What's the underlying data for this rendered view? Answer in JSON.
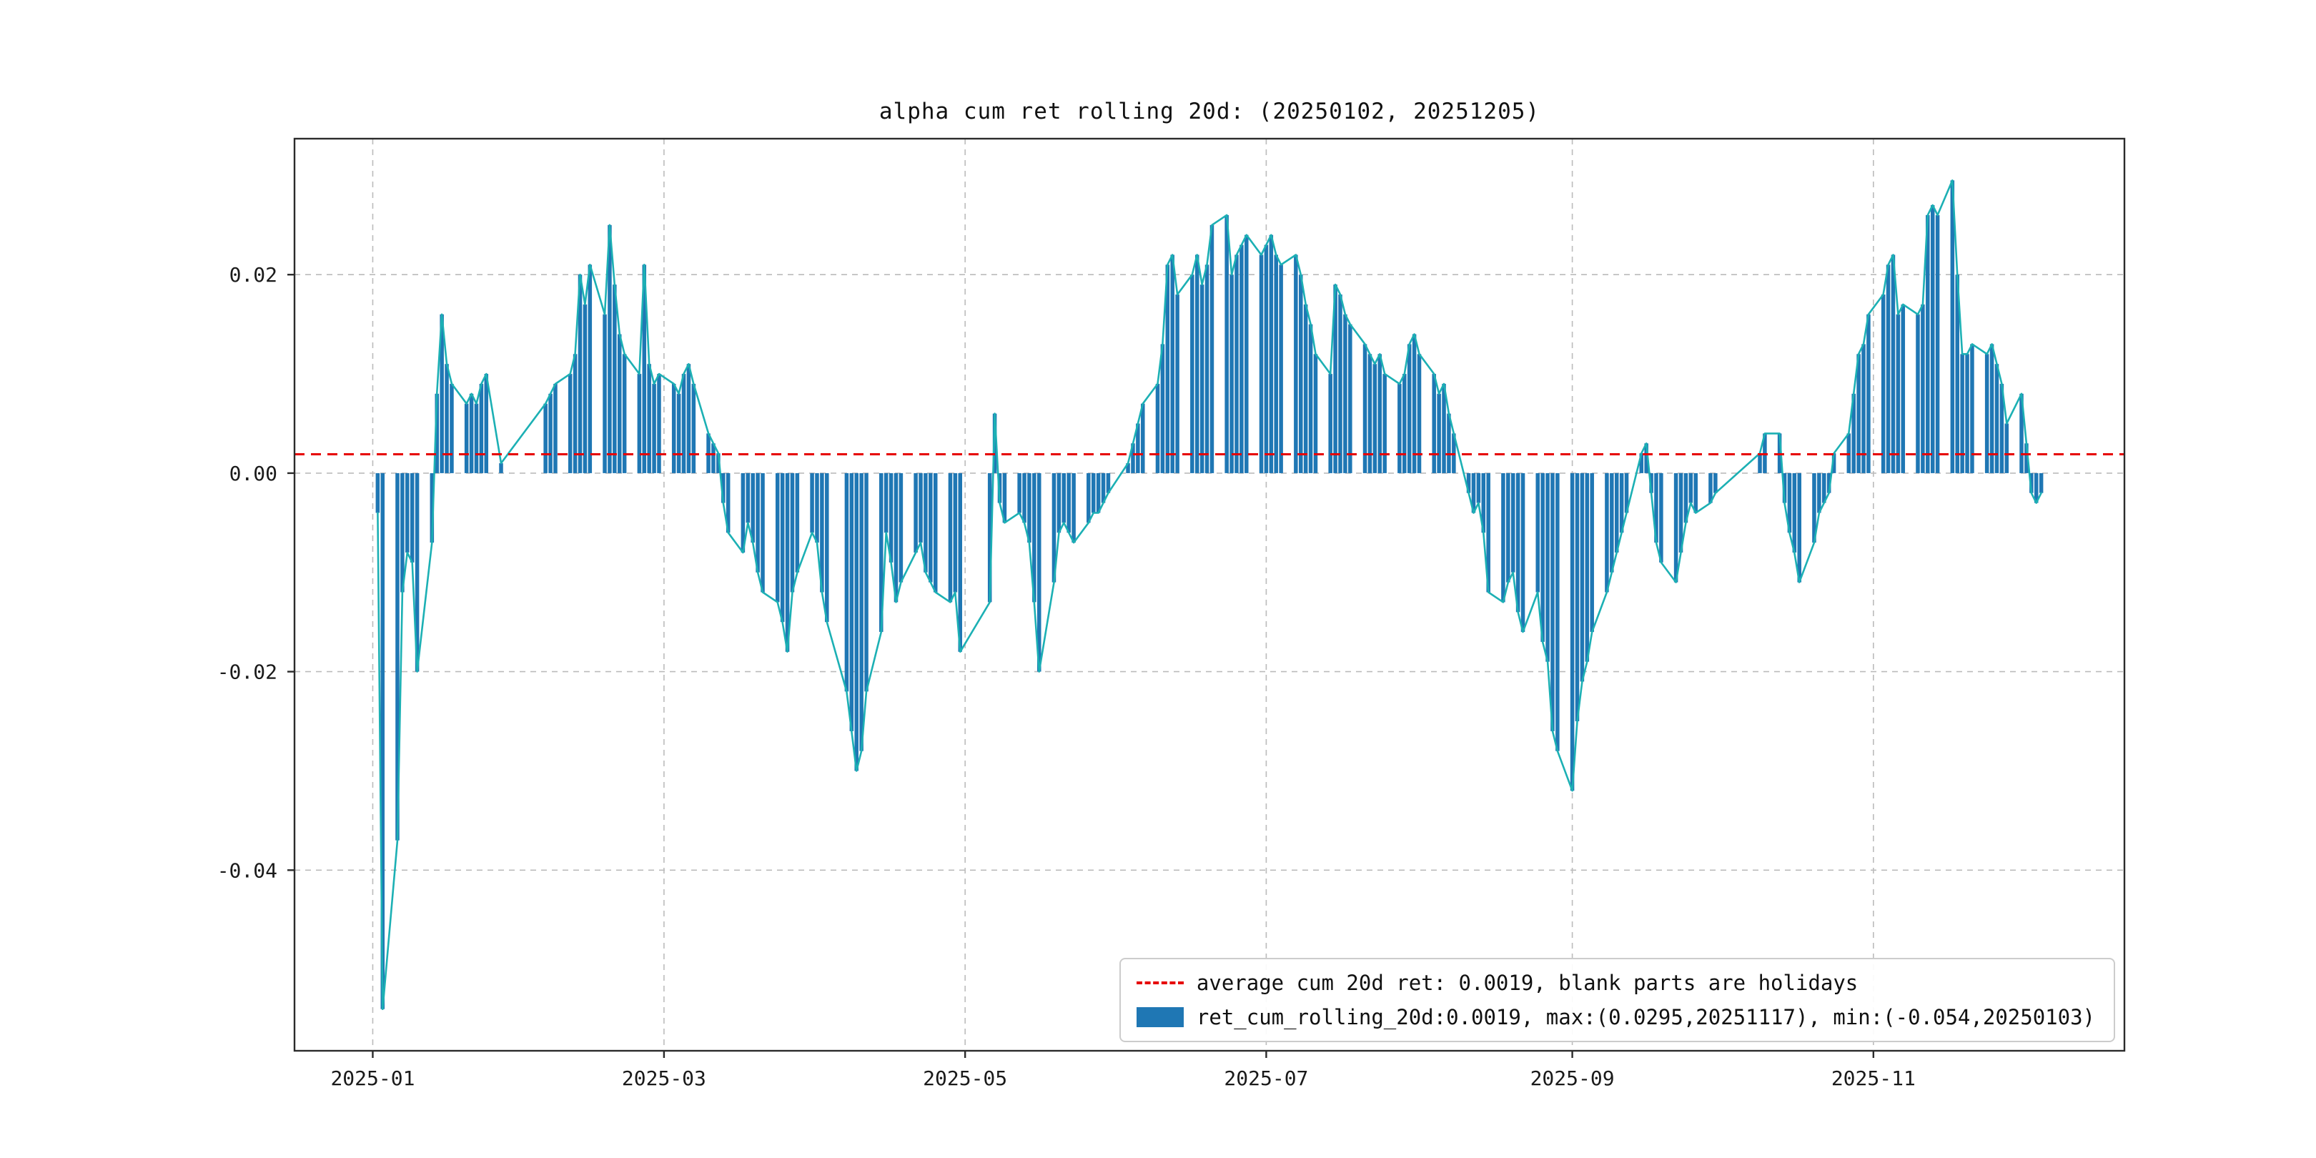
{
  "title": "alpha cum ret rolling 20d: (20250102, 20251205)",
  "legend": {
    "average_label": "average cum 20d ret: 0.0019, blank parts are holidays",
    "series_label": "ret_cum_rolling_20d:0.0019, max:(0.0295,20251117), min:(-0.054,20250103)"
  },
  "colors": {
    "bar": "#1f77b4",
    "line": "#1cb0b4",
    "average": "#e60000",
    "grid": "#bbbbbb",
    "frame": "#2b2b2b"
  },
  "chart_data": {
    "type": "bar",
    "title": "alpha cum ret rolling 20d: (20250102, 20251205)",
    "series_name": "ret_cum_rolling_20d",
    "average": 0.0019,
    "max": {
      "value": 0.0295,
      "date": "2025-11-17"
    },
    "min": {
      "value": -0.054,
      "date": "2025-01-03"
    },
    "ylim": [
      -0.0582,
      0.0337
    ],
    "x_margin_frac": 0.05,
    "grid": true,
    "legend_position": "lower right",
    "note": "blank parts are holidays",
    "yticks": [
      {
        "v": 0.02,
        "label": "0.02"
      },
      {
        "v": 0.0,
        "label": "0.00"
      },
      {
        "v": -0.02,
        "label": "-0.02"
      },
      {
        "v": -0.04,
        "label": "-0.04"
      }
    ],
    "xticks": [
      {
        "date": "2025-01-01",
        "label": "2025-01"
      },
      {
        "date": "2025-03-01",
        "label": "2025-03"
      },
      {
        "date": "2025-05-01",
        "label": "2025-05"
      },
      {
        "date": "2025-07-01",
        "label": "2025-07"
      },
      {
        "date": "2025-09-01",
        "label": "2025-09"
      },
      {
        "date": "2025-11-01",
        "label": "2025-11"
      }
    ],
    "dates": [
      "2025-01-02",
      "2025-01-03",
      "2025-01-06",
      "2025-01-07",
      "2025-01-08",
      "2025-01-09",
      "2025-01-10",
      "2025-01-13",
      "2025-01-14",
      "2025-01-15",
      "2025-01-16",
      "2025-01-17",
      "2025-01-20",
      "2025-01-21",
      "2025-01-22",
      "2025-01-23",
      "2025-01-24",
      "2025-01-27",
      "2025-02-05",
      "2025-02-06",
      "2025-02-07",
      "2025-02-10",
      "2025-02-11",
      "2025-02-12",
      "2025-02-13",
      "2025-02-14",
      "2025-02-17",
      "2025-02-18",
      "2025-02-19",
      "2025-02-20",
      "2025-02-21",
      "2025-02-24",
      "2025-02-25",
      "2025-02-26",
      "2025-02-27",
      "2025-02-28",
      "2025-03-03",
      "2025-03-04",
      "2025-03-05",
      "2025-03-06",
      "2025-03-07",
      "2025-03-10",
      "2025-03-11",
      "2025-03-12",
      "2025-03-13",
      "2025-03-14",
      "2025-03-17",
      "2025-03-18",
      "2025-03-19",
      "2025-03-20",
      "2025-03-21",
      "2025-03-24",
      "2025-03-25",
      "2025-03-26",
      "2025-03-27",
      "2025-03-28",
      "2025-03-31",
      "2025-04-01",
      "2025-04-02",
      "2025-04-03",
      "2025-04-07",
      "2025-04-08",
      "2025-04-09",
      "2025-04-10",
      "2025-04-11",
      "2025-04-14",
      "2025-04-15",
      "2025-04-16",
      "2025-04-17",
      "2025-04-18",
      "2025-04-21",
      "2025-04-22",
      "2025-04-23",
      "2025-04-24",
      "2025-04-25",
      "2025-04-28",
      "2025-04-29",
      "2025-04-30",
      "2025-05-06",
      "2025-05-07",
      "2025-05-08",
      "2025-05-09",
      "2025-05-12",
      "2025-05-13",
      "2025-05-14",
      "2025-05-15",
      "2025-05-16",
      "2025-05-19",
      "2025-05-20",
      "2025-05-21",
      "2025-05-22",
      "2025-05-23",
      "2025-05-26",
      "2025-05-27",
      "2025-05-28",
      "2025-05-29",
      "2025-05-30",
      "2025-06-03",
      "2025-06-04",
      "2025-06-05",
      "2025-06-06",
      "2025-06-09",
      "2025-06-10",
      "2025-06-11",
      "2025-06-12",
      "2025-06-13",
      "2025-06-16",
      "2025-06-17",
      "2025-06-18",
      "2025-06-19",
      "2025-06-20",
      "2025-06-23",
      "2025-06-24",
      "2025-06-25",
      "2025-06-26",
      "2025-06-27",
      "2025-06-30",
      "2025-07-01",
      "2025-07-02",
      "2025-07-03",
      "2025-07-04",
      "2025-07-07",
      "2025-07-08",
      "2025-07-09",
      "2025-07-10",
      "2025-07-11",
      "2025-07-14",
      "2025-07-15",
      "2025-07-16",
      "2025-07-17",
      "2025-07-18",
      "2025-07-21",
      "2025-07-22",
      "2025-07-23",
      "2025-07-24",
      "2025-07-25",
      "2025-07-28",
      "2025-07-29",
      "2025-07-30",
      "2025-07-31",
      "2025-08-01",
      "2025-08-04",
      "2025-08-05",
      "2025-08-06",
      "2025-08-07",
      "2025-08-08",
      "2025-08-11",
      "2025-08-12",
      "2025-08-13",
      "2025-08-14",
      "2025-08-15",
      "2025-08-18",
      "2025-08-19",
      "2025-08-20",
      "2025-08-21",
      "2025-08-22",
      "2025-08-25",
      "2025-08-26",
      "2025-08-27",
      "2025-08-28",
      "2025-08-29",
      "2025-09-01",
      "2025-09-02",
      "2025-09-03",
      "2025-09-04",
      "2025-09-05",
      "2025-09-08",
      "2025-09-09",
      "2025-09-10",
      "2025-09-11",
      "2025-09-12",
      "2025-09-15",
      "2025-09-16",
      "2025-09-17",
      "2025-09-18",
      "2025-09-19",
      "2025-09-22",
      "2025-09-23",
      "2025-09-24",
      "2025-09-25",
      "2025-09-26",
      "2025-09-29",
      "2025-09-30",
      "2025-10-09",
      "2025-10-10",
      "2025-10-13",
      "2025-10-14",
      "2025-10-15",
      "2025-10-16",
      "2025-10-17",
      "2025-10-20",
      "2025-10-21",
      "2025-10-22",
      "2025-10-23",
      "2025-10-24",
      "2025-10-27",
      "2025-10-28",
      "2025-10-29",
      "2025-10-30",
      "2025-10-31",
      "2025-11-03",
      "2025-11-04",
      "2025-11-05",
      "2025-11-06",
      "2025-11-07",
      "2025-11-10",
      "2025-11-11",
      "2025-11-12",
      "2025-11-13",
      "2025-11-14",
      "2025-11-17",
      "2025-11-18",
      "2025-11-19",
      "2025-11-20",
      "2025-11-21",
      "2025-11-24",
      "2025-11-25",
      "2025-11-26",
      "2025-11-27",
      "2025-11-28",
      "2025-12-01",
      "2025-12-02",
      "2025-12-03",
      "2025-12-04",
      "2025-12-05"
    ],
    "values": [
      -0.004,
      -0.054,
      -0.037,
      -0.012,
      -0.008,
      -0.009,
      -0.02,
      -0.007,
      0.008,
      0.016,
      0.011,
      0.009,
      0.007,
      0.008,
      0.007,
      0.009,
      0.01,
      0.001,
      0.007,
      0.008,
      0.009,
      0.01,
      0.012,
      0.02,
      0.017,
      0.021,
      0.016,
      0.025,
      0.019,
      0.014,
      0.012,
      0.01,
      0.021,
      0.011,
      0.009,
      0.01,
      0.009,
      0.008,
      0.01,
      0.011,
      0.009,
      0.004,
      0.003,
      0.002,
      -0.003,
      -0.006,
      -0.008,
      -0.005,
      -0.007,
      -0.01,
      -0.012,
      -0.013,
      -0.015,
      -0.018,
      -0.012,
      -0.01,
      -0.006,
      -0.007,
      -0.012,
      -0.015,
      -0.022,
      -0.026,
      -0.03,
      -0.028,
      -0.022,
      -0.016,
      -0.006,
      -0.009,
      -0.013,
      -0.011,
      -0.008,
      -0.007,
      -0.01,
      -0.011,
      -0.012,
      -0.013,
      -0.012,
      -0.018,
      -0.013,
      0.006,
      -0.003,
      -0.005,
      -0.004,
      -0.005,
      -0.007,
      -0.013,
      -0.02,
      -0.011,
      -0.006,
      -0.005,
      -0.006,
      -0.007,
      -0.005,
      -0.004,
      -0.004,
      -0.003,
      -0.002,
      0.001,
      0.003,
      0.005,
      0.007,
      0.009,
      0.013,
      0.021,
      0.022,
      0.018,
      0.02,
      0.022,
      0.019,
      0.021,
      0.025,
      0.026,
      0.02,
      0.022,
      0.023,
      0.024,
      0.022,
      0.023,
      0.024,
      0.022,
      0.021,
      0.022,
      0.02,
      0.017,
      0.015,
      0.012,
      0.01,
      0.019,
      0.018,
      0.016,
      0.015,
      0.013,
      0.012,
      0.011,
      0.012,
      0.01,
      0.009,
      0.01,
      0.013,
      0.014,
      0.012,
      0.01,
      0.008,
      0.009,
      0.006,
      0.004,
      -0.002,
      -0.004,
      -0.003,
      -0.006,
      -0.012,
      -0.013,
      -0.011,
      -0.01,
      -0.014,
      -0.016,
      -0.012,
      -0.017,
      -0.019,
      -0.026,
      -0.028,
      -0.032,
      -0.025,
      -0.021,
      -0.019,
      -0.016,
      -0.012,
      -0.01,
      -0.008,
      -0.006,
      -0.004,
      0.002,
      0.003,
      -0.002,
      -0.007,
      -0.009,
      -0.011,
      -0.008,
      -0.005,
      -0.003,
      -0.004,
      -0.003,
      -0.002,
      0.002,
      0.004,
      0.004,
      -0.003,
      -0.006,
      -0.008,
      -0.011,
      -0.007,
      -0.004,
      -0.003,
      -0.002,
      0.002,
      0.004,
      0.008,
      0.012,
      0.013,
      0.016,
      0.018,
      0.021,
      0.022,
      0.016,
      0.017,
      0.016,
      0.017,
      0.026,
      0.027,
      0.026,
      0.0295,
      0.02,
      0.012,
      0.012,
      0.013,
      0.012,
      0.013,
      0.011,
      0.009,
      0.005,
      0.008,
      0.003,
      -0.002,
      -0.003,
      -0.002
    ]
  }
}
